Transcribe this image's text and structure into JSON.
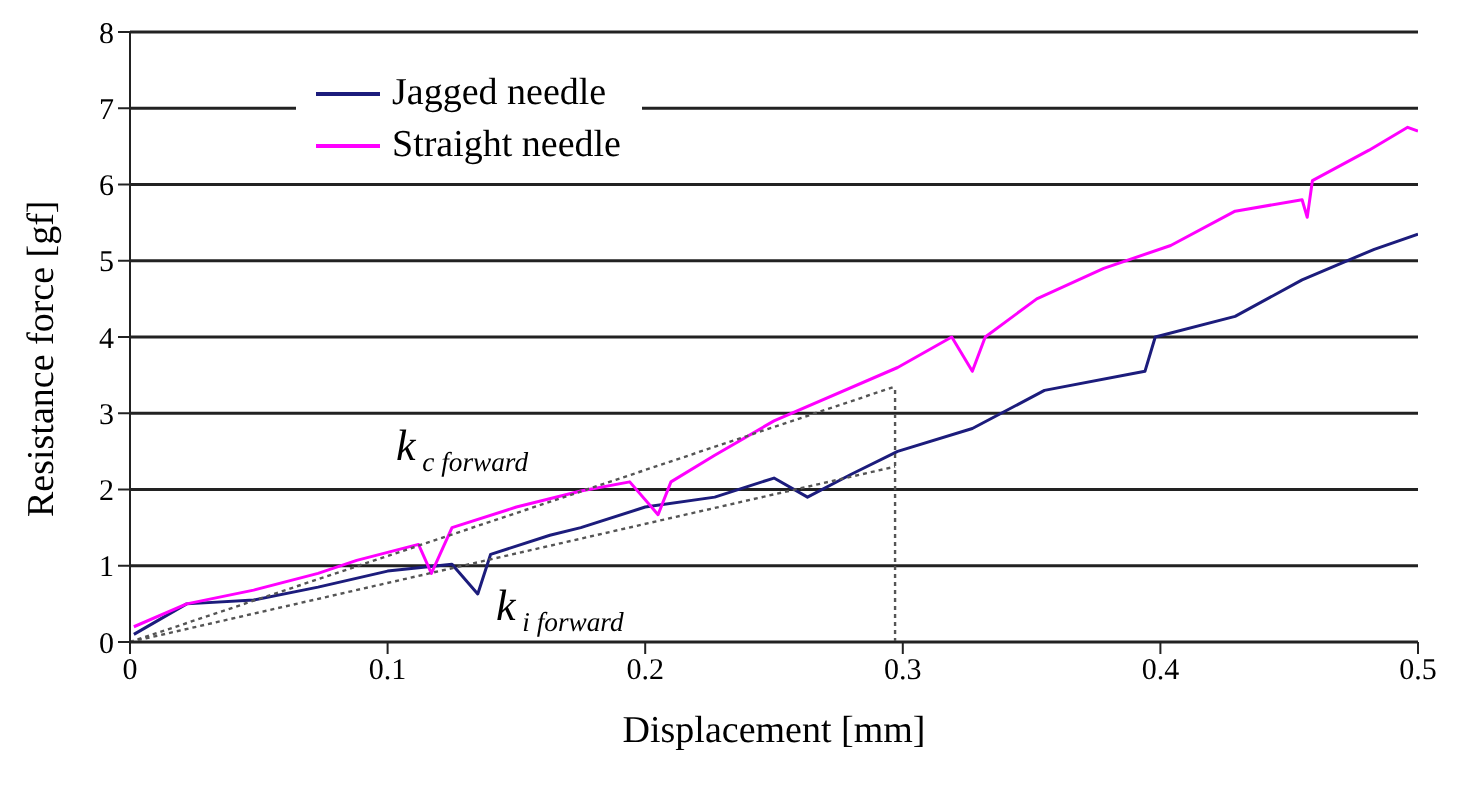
{
  "chart_data": {
    "type": "line",
    "xlabel": "Displacement [mm]",
    "ylabel": "Resistance force [gf]",
    "xlim": [
      0,
      0.5
    ],
    "xticks": [
      0,
      0.1,
      0.2,
      0.3,
      0.4,
      0.5
    ],
    "ylim": [
      0,
      8
    ],
    "yticks": [
      0,
      1,
      2,
      3,
      4,
      5,
      6,
      7,
      8
    ],
    "grid": "y",
    "legend": "top left",
    "marker": "none",
    "series": [
      {
        "name": "Jagged needle",
        "color": "#1c1c7c",
        "x": [
          0.0015,
          0.022,
          0.048,
          0.073,
          0.1,
          0.125,
          0.135,
          0.14,
          0.163,
          0.175,
          0.2,
          0.227,
          0.25,
          0.263,
          0.28,
          0.298,
          0.327,
          0.355,
          0.394,
          0.398,
          0.429,
          0.455,
          0.483,
          0.5
        ],
        "values": [
          0.1,
          0.5,
          0.55,
          0.72,
          0.93,
          1.02,
          0.63,
          1.15,
          1.4,
          1.5,
          1.77,
          1.9,
          2.15,
          1.9,
          2.2,
          2.5,
          2.8,
          3.3,
          3.55,
          4.0,
          4.27,
          4.75,
          5.15,
          5.35
        ]
      },
      {
        "name": "Straight needle",
        "color": "#ff00ff",
        "x": [
          0.0015,
          0.022,
          0.048,
          0.073,
          0.088,
          0.112,
          0.117,
          0.125,
          0.15,
          0.175,
          0.194,
          0.205,
          0.21,
          0.227,
          0.25,
          0.298,
          0.319,
          0.327,
          0.332,
          0.352,
          0.378,
          0.404,
          0.429,
          0.455,
          0.457,
          0.459,
          0.481,
          0.496,
          0.5
        ],
        "values": [
          0.2,
          0.5,
          0.68,
          0.9,
          1.07,
          1.28,
          0.9,
          1.5,
          1.77,
          1.98,
          2.1,
          1.67,
          2.1,
          2.45,
          2.9,
          3.6,
          4.0,
          3.55,
          4.0,
          4.5,
          4.9,
          5.2,
          5.65,
          5.8,
          5.57,
          6.05,
          6.45,
          6.75,
          6.7
        ]
      },
      {
        "type": "line",
        "color": "#555555",
        "line_style": "dotted",
        "x": [
          0,
          0.297
        ],
        "values": [
          0,
          3.35
        ]
      },
      {
        "type": "line",
        "color": "#555555",
        "line_style": "dotted",
        "x": [
          0,
          0.297
        ],
        "values": [
          0,
          2.3
        ]
      },
      {
        "type": "line",
        "color": "#555555",
        "line_style": "dotted",
        "x": [
          0.297,
          0.297
        ],
        "values": [
          0,
          3.35
        ]
      }
    ],
    "annotations": [
      "k$_{c forward}$",
      "k$_{i forward}$"
    ]
  }
}
